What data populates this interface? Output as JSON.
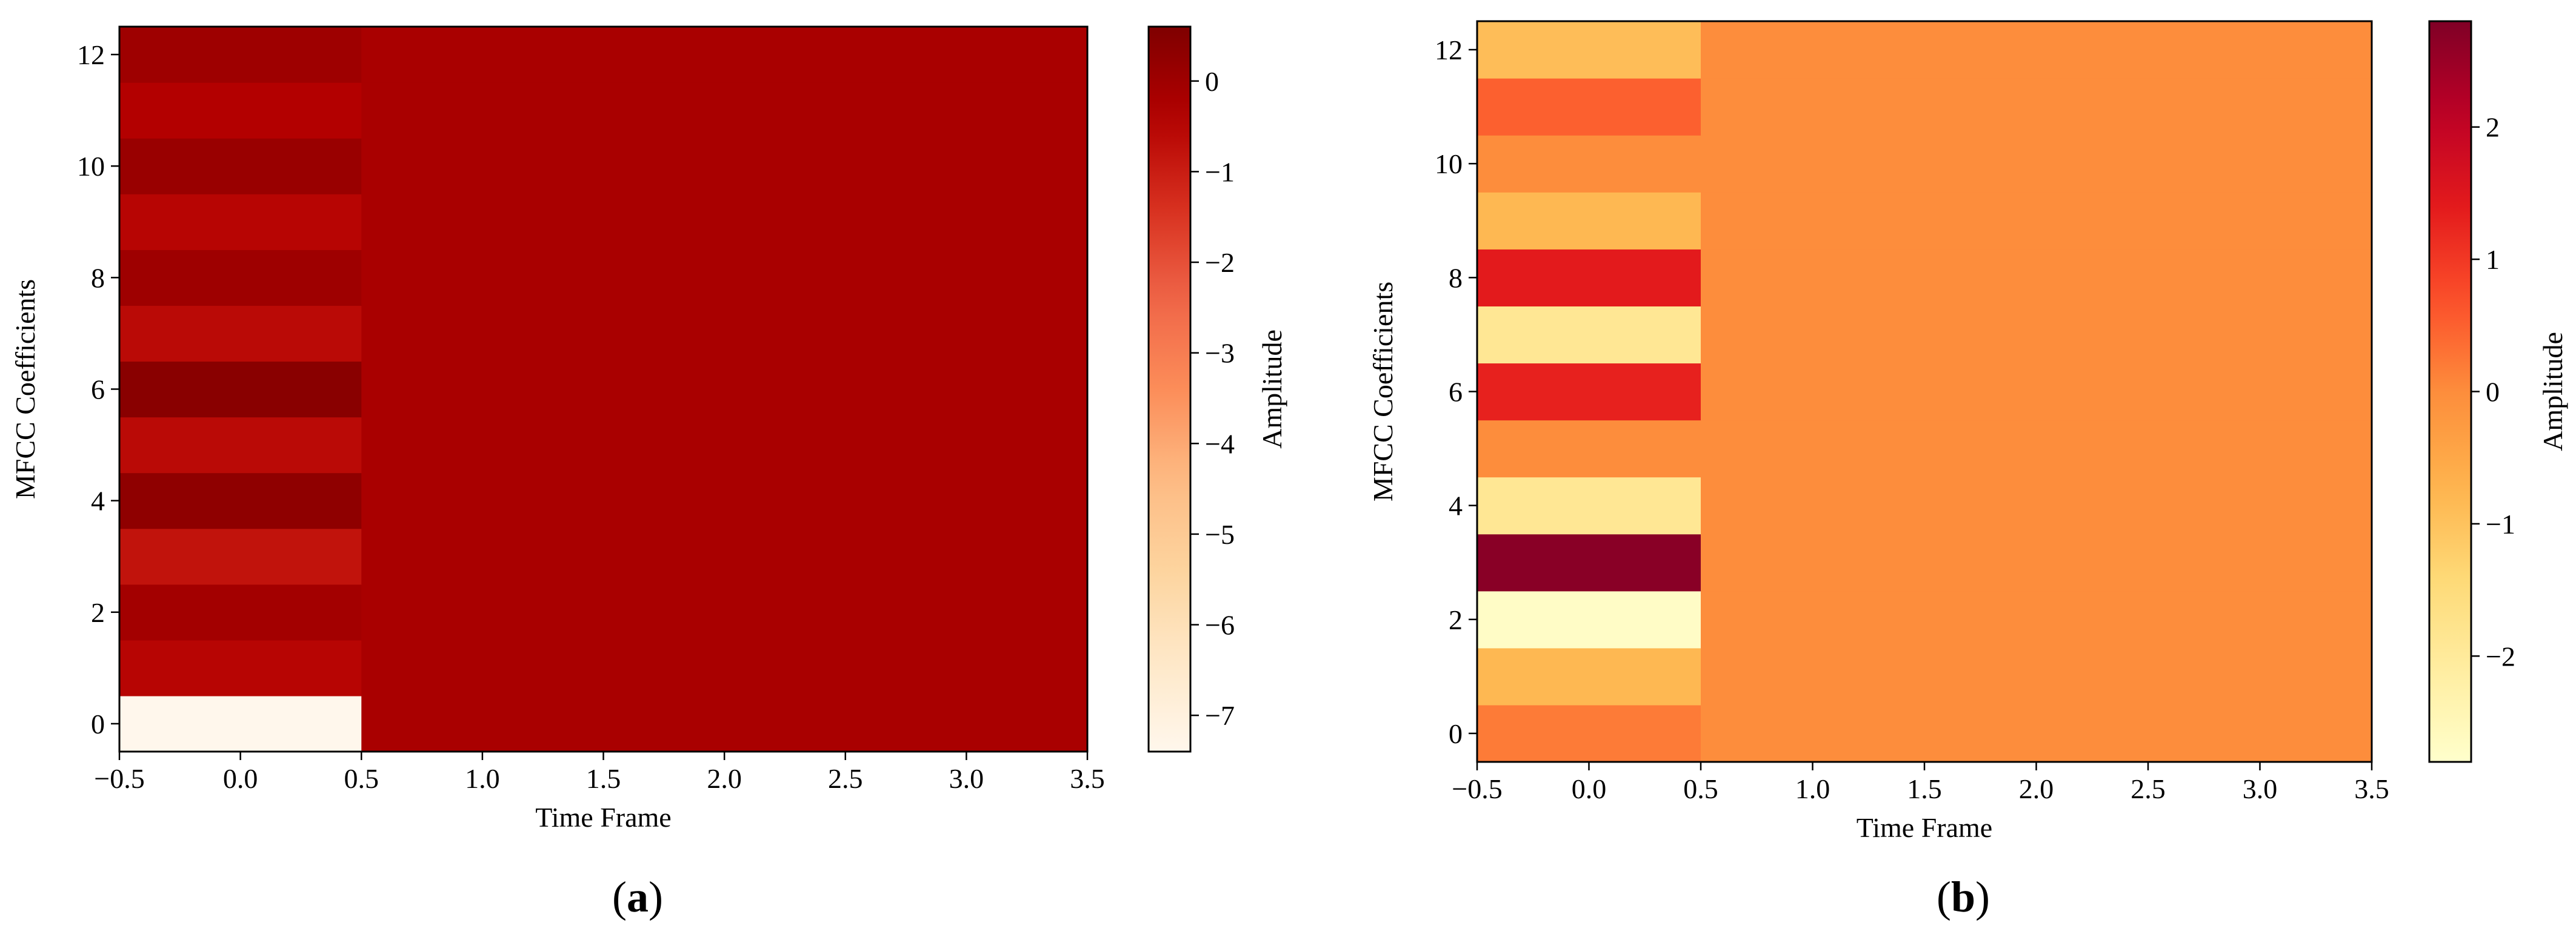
{
  "chart_data": [
    {
      "type": "heatmap",
      "panel": "a",
      "xlabel": "Time Frame",
      "ylabel": "MFCC Coefficients",
      "colorbar_label": "Amplitude",
      "colormap": "OrRd",
      "xlim": [
        -0.5,
        3.5
      ],
      "ylim": [
        -0.5,
        12.5
      ],
      "x_ticks": [
        -0.5,
        0.0,
        0.5,
        1.0,
        1.5,
        2.0,
        2.5,
        3.0,
        3.5
      ],
      "x_tick_labels": [
        "−0.5",
        "0.0",
        "0.5",
        "1.0",
        "1.5",
        "2.0",
        "2.5",
        "3.0",
        "3.5"
      ],
      "y_ticks": [
        0,
        2,
        4,
        6,
        8,
        10,
        12
      ],
      "y_tick_labels": [
        "0",
        "2",
        "4",
        "6",
        "8",
        "10",
        "12"
      ],
      "vmin": -7.4,
      "vmax": 0.6,
      "colorbar_ticks": [
        0,
        -1,
        -2,
        -3,
        -4,
        -5,
        -6,
        -7
      ],
      "colorbar_tick_labels": [
        "0",
        "−1",
        "−2",
        "−3",
        "−4",
        "−5",
        "−6",
        "−7"
      ],
      "first_frame_values": [
        -7.4,
        -0.5,
        -0.1,
        -0.8,
        0.3,
        -0.6,
        0.4,
        -0.6,
        0.0,
        -0.5,
        0.1,
        -0.4,
        0.0
      ],
      "other_frames_value": -0.2,
      "frames": [
        0,
        1,
        2,
        3
      ]
    },
    {
      "type": "heatmap",
      "panel": "b",
      "xlabel": "Time Frame",
      "ylabel": "MFCC Coefficients",
      "colorbar_label": "Amplitude",
      "colormap": "YlOrRd",
      "xlim": [
        -0.5,
        3.5
      ],
      "ylim": [
        -0.5,
        12.5
      ],
      "x_ticks": [
        -0.5,
        0.0,
        0.5,
        1.0,
        1.5,
        2.0,
        2.5,
        3.0,
        3.5
      ],
      "x_tick_labels": [
        "−0.5",
        "0.0",
        "0.5",
        "1.0",
        "1.5",
        "2.0",
        "2.5",
        "3.0",
        "3.5"
      ],
      "y_ticks": [
        0,
        2,
        4,
        6,
        8,
        10,
        12
      ],
      "y_tick_labels": [
        "0",
        "2",
        "4",
        "6",
        "8",
        "10",
        "12"
      ],
      "vmin": -2.8,
      "vmax": 2.8,
      "colorbar_ticks": [
        2,
        1,
        0,
        -1,
        -2
      ],
      "colorbar_tick_labels": [
        "2",
        "1",
        "0",
        "−1",
        "−2"
      ],
      "first_frame_values": [
        0.2,
        -0.8,
        -2.7,
        2.7,
        -1.9,
        0.0,
        1.3,
        -1.9,
        1.4,
        -0.8,
        0.0,
        0.5,
        -0.9
      ],
      "other_frames_value": 0.0,
      "frames": [
        0,
        1,
        2,
        3
      ]
    }
  ],
  "panel_labels": {
    "a": "a",
    "b": "b"
  }
}
